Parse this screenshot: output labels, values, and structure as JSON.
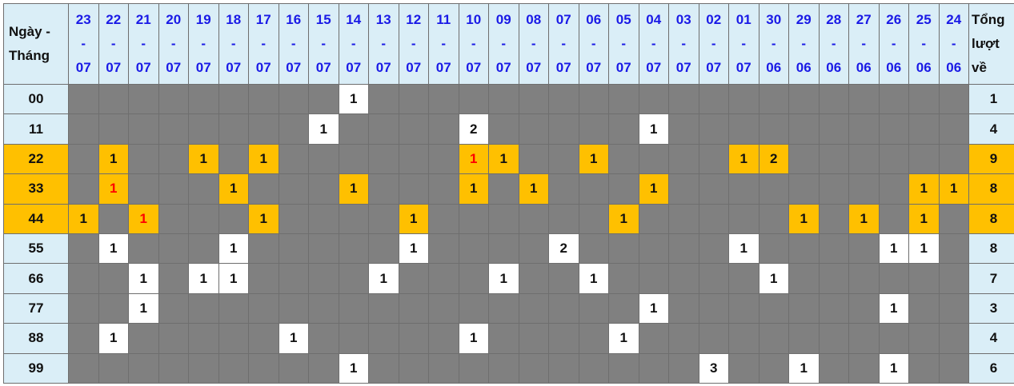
{
  "header": {
    "label": "Ngày - Tháng",
    "total_label": "Tổng lượt về",
    "sep": "-"
  },
  "columns": [
    {
      "d": "23",
      "m": "07"
    },
    {
      "d": "22",
      "m": "07"
    },
    {
      "d": "21",
      "m": "07"
    },
    {
      "d": "20",
      "m": "07"
    },
    {
      "d": "19",
      "m": "07"
    },
    {
      "d": "18",
      "m": "07"
    },
    {
      "d": "17",
      "m": "07"
    },
    {
      "d": "16",
      "m": "07"
    },
    {
      "d": "15",
      "m": "07"
    },
    {
      "d": "14",
      "m": "07"
    },
    {
      "d": "13",
      "m": "07"
    },
    {
      "d": "12",
      "m": "07"
    },
    {
      "d": "11",
      "m": "07"
    },
    {
      "d": "10",
      "m": "07"
    },
    {
      "d": "09",
      "m": "07"
    },
    {
      "d": "08",
      "m": "07"
    },
    {
      "d": "07",
      "m": "07"
    },
    {
      "d": "06",
      "m": "07"
    },
    {
      "d": "05",
      "m": "07"
    },
    {
      "d": "04",
      "m": "07"
    },
    {
      "d": "03",
      "m": "07"
    },
    {
      "d": "02",
      "m": "07"
    },
    {
      "d": "01",
      "m": "07"
    },
    {
      "d": "30",
      "m": "06"
    },
    {
      "d": "29",
      "m": "06"
    },
    {
      "d": "28",
      "m": "06"
    },
    {
      "d": "27",
      "m": "06"
    },
    {
      "d": "26",
      "m": "06"
    },
    {
      "d": "25",
      "m": "06"
    },
    {
      "d": "24",
      "m": "06"
    }
  ],
  "colors": {
    "highlight": "#ffc000",
    "empty": "#808080",
    "hit": "#ffffff",
    "header": "#daeef7",
    "date_text": "#1a1ae6",
    "red_text": "#ff0000"
  },
  "rows": [
    {
      "label": "00",
      "highlight": false,
      "total": "1",
      "cells": {
        "14-07": "1"
      }
    },
    {
      "label": "11",
      "highlight": false,
      "total": "4",
      "cells": {
        "15-07": "1",
        "10-07": "2",
        "04-07": "1"
      }
    },
    {
      "label": "22",
      "highlight": true,
      "total": "9",
      "cells": {
        "22-07": "1",
        "19-07": "1",
        "17-07": "1",
        "10-07": "1",
        "09-07": "1",
        "06-07": "1",
        "01-07": "1",
        "30-06": "2"
      },
      "red": [
        "10-07"
      ]
    },
    {
      "label": "33",
      "highlight": true,
      "total": "8",
      "cells": {
        "22-07": "1",
        "18-07": "1",
        "14-07": "1",
        "10-07": "1",
        "08-07": "1",
        "04-07": "1",
        "25-06": "1",
        "24-06": "1"
      },
      "red": [
        "22-07"
      ]
    },
    {
      "label": "44",
      "highlight": true,
      "total": "8",
      "cells": {
        "23-07": "1",
        "21-07": "1",
        "17-07": "1",
        "12-07": "1",
        "05-07": "1",
        "29-06": "1",
        "27-06": "1",
        "25-06": "1"
      },
      "red": [
        "21-07"
      ]
    },
    {
      "label": "55",
      "highlight": false,
      "total": "8",
      "cells": {
        "22-07": "1",
        "18-07": "1",
        "12-07": "1",
        "07-07": "2",
        "01-07": "1",
        "26-06": "1",
        "25-06": "1"
      }
    },
    {
      "label": "66",
      "highlight": false,
      "total": "7",
      "cells": {
        "21-07": "1",
        "19-07": "1",
        "18-07": "1",
        "13-07": "1",
        "09-07": "1",
        "06-07": "1",
        "30-06": "1"
      }
    },
    {
      "label": "77",
      "highlight": false,
      "total": "3",
      "cells": {
        "21-07": "1",
        "04-07": "1",
        "26-06": "1"
      }
    },
    {
      "label": "88",
      "highlight": false,
      "total": "4",
      "cells": {
        "22-07": "1",
        "16-07": "1",
        "10-07": "1",
        "05-07": "1"
      }
    },
    {
      "label": "99",
      "highlight": false,
      "total": "6",
      "cells": {
        "14-07": "1",
        "02-07": "3",
        "29-06": "1",
        "26-06": "1"
      }
    }
  ]
}
